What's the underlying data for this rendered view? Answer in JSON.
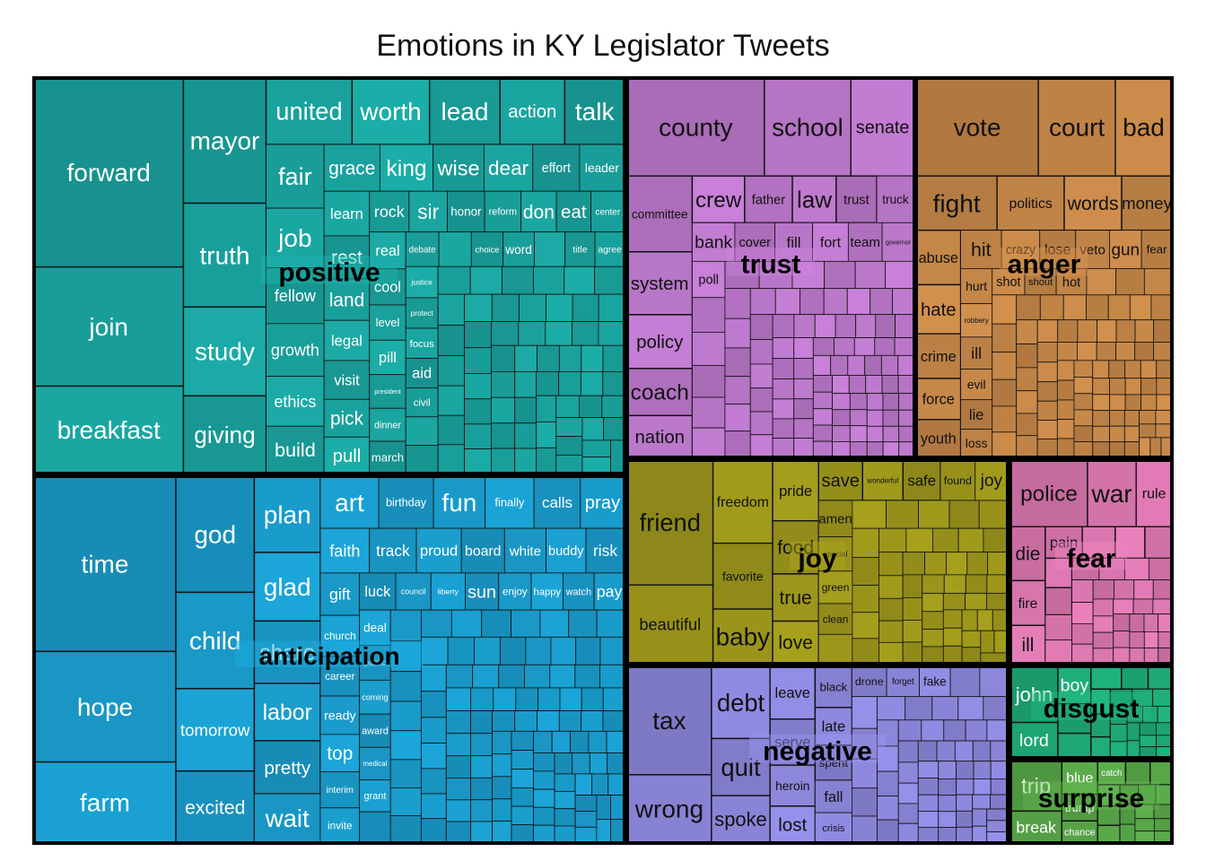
{
  "chart_data": {
    "type": "treemap",
    "title": "Emotions in KY Legislator Tweets",
    "groups": [
      {
        "name": "positive",
        "color": "#1aa6a1",
        "text": "light",
        "labeled_words": [
          "forward",
          "join",
          "breakfast",
          "mayor",
          "truth",
          "study",
          "giving",
          "united",
          "worth",
          "lead",
          "action",
          "talk",
          "fair",
          "job",
          "fellow",
          "growth",
          "ethics",
          "build",
          "grace",
          "king",
          "wise",
          "dear",
          "effort",
          "leader",
          "learn",
          "rest",
          "land",
          "legal",
          "visit",
          "pick",
          "pull",
          "rock",
          "sir",
          "honor",
          "reform",
          "don",
          "eat",
          "center",
          "real",
          "cool",
          "level",
          "pill",
          "president",
          "dinner",
          "march",
          "debate",
          "community",
          "choice",
          "word",
          "standing",
          "title",
          "agree",
          "justice",
          "protect",
          "focus",
          "aid",
          "civil"
        ]
      },
      {
        "name": "anticipation",
        "color": "#1a9fd0",
        "text": "light",
        "labeled_words": [
          "time",
          "hope",
          "farm",
          "god",
          "child",
          "tomorrow",
          "excited",
          "plan",
          "glad",
          "share",
          "labor",
          "pretty",
          "wait",
          "art",
          "birthday",
          "fun",
          "finally",
          "calls",
          "pray",
          "faith",
          "track",
          "proud",
          "board",
          "white",
          "buddy",
          "risk",
          "gift",
          "church",
          "career",
          "ready",
          "top",
          "interim",
          "invite",
          "luck",
          "council",
          "liberty",
          "sun",
          "enjoy",
          "happy",
          "watch",
          "pay",
          "deal",
          "public",
          "coming",
          "award",
          "medical",
          "grant"
        ]
      },
      {
        "name": "trust",
        "color": "#c07bd0",
        "text": "dark",
        "labeled_words": [
          "county",
          "school",
          "senate",
          "committee",
          "system",
          "policy",
          "coach",
          "nation",
          "crew",
          "father",
          "law",
          "trust",
          "truck",
          "bank",
          "cover",
          "fill",
          "fort",
          "team",
          "governor",
          "poll"
        ]
      },
      {
        "name": "anger",
        "color": "#c98a4a",
        "text": "dark",
        "labeled_words": [
          "vote",
          "court",
          "bad",
          "fight",
          "politics",
          "words",
          "money",
          "abuse",
          "hate",
          "crime",
          "force",
          "youth",
          "hit",
          "crazy",
          "lose",
          "veto",
          "gun",
          "fear",
          "hurt",
          "robbery",
          "ill",
          "evil",
          "lie",
          "loss",
          "shot",
          "shout",
          "hot"
        ]
      },
      {
        "name": "joy",
        "color": "#a09a1c",
        "text": "dark",
        "labeled_words": [
          "friend",
          "beautiful",
          "freedom",
          "favorite",
          "baby",
          "pride",
          "food",
          "true",
          "love",
          "save",
          "wonderful",
          "safe",
          "found",
          "joy",
          "amen",
          "special",
          "green",
          "clean"
        ]
      },
      {
        "name": "negative",
        "color": "#8f8ae0",
        "text": "dark",
        "labeled_words": [
          "tax",
          "wrong",
          "debt",
          "quit",
          "spoke",
          "leave",
          "serve",
          "heroin",
          "lost",
          "black",
          "late",
          "spent",
          "fall",
          "crisis",
          "drone",
          "forget",
          "fake"
        ]
      },
      {
        "name": "fear",
        "color": "#e07ab4",
        "text": "dark",
        "labeled_words": [
          "police",
          "war",
          "rule",
          "die",
          "fire",
          "ill",
          "pain"
        ]
      },
      {
        "name": "disgust",
        "color": "#1fae7a",
        "text": "light",
        "labeled_words": [
          "john",
          "lord",
          "boy"
        ]
      },
      {
        "name": "surprise",
        "color": "#5aaa4a",
        "text": "light",
        "labeled_words": [
          "trip",
          "break",
          "blue",
          "trump",
          "chance",
          "catch"
        ]
      }
    ]
  }
}
